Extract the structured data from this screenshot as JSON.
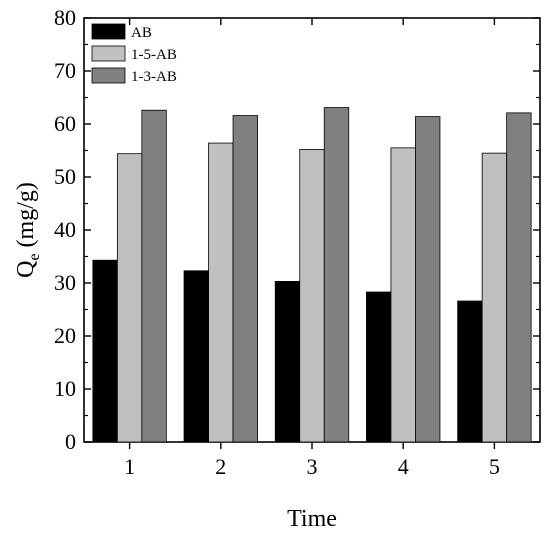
{
  "chart_data": {
    "type": "bar",
    "categories": [
      "1",
      "2",
      "3",
      "4",
      "5"
    ],
    "series": [
      {
        "name": "AB",
        "values": [
          34.3,
          32.3,
          30.3,
          28.3,
          26.6
        ],
        "color": "#000000"
      },
      {
        "name": "1-5-AB",
        "values": [
          54.4,
          56.4,
          55.2,
          55.5,
          54.5
        ],
        "color": "#c0c0c0"
      },
      {
        "name": "1-3-AB",
        "values": [
          62.6,
          61.6,
          63.1,
          61.4,
          62.1
        ],
        "color": "#808080"
      }
    ],
    "xlabel": "Time",
    "ylabel": {
      "main": "Q",
      "sub": "e",
      "rest": " (mg/g)"
    },
    "ylim": [
      0,
      80
    ],
    "yticks": [
      "0",
      "10",
      "20",
      "30",
      "40",
      "50",
      "60",
      "70",
      "80"
    ],
    "legend_position": "top-left",
    "grid": false
  }
}
